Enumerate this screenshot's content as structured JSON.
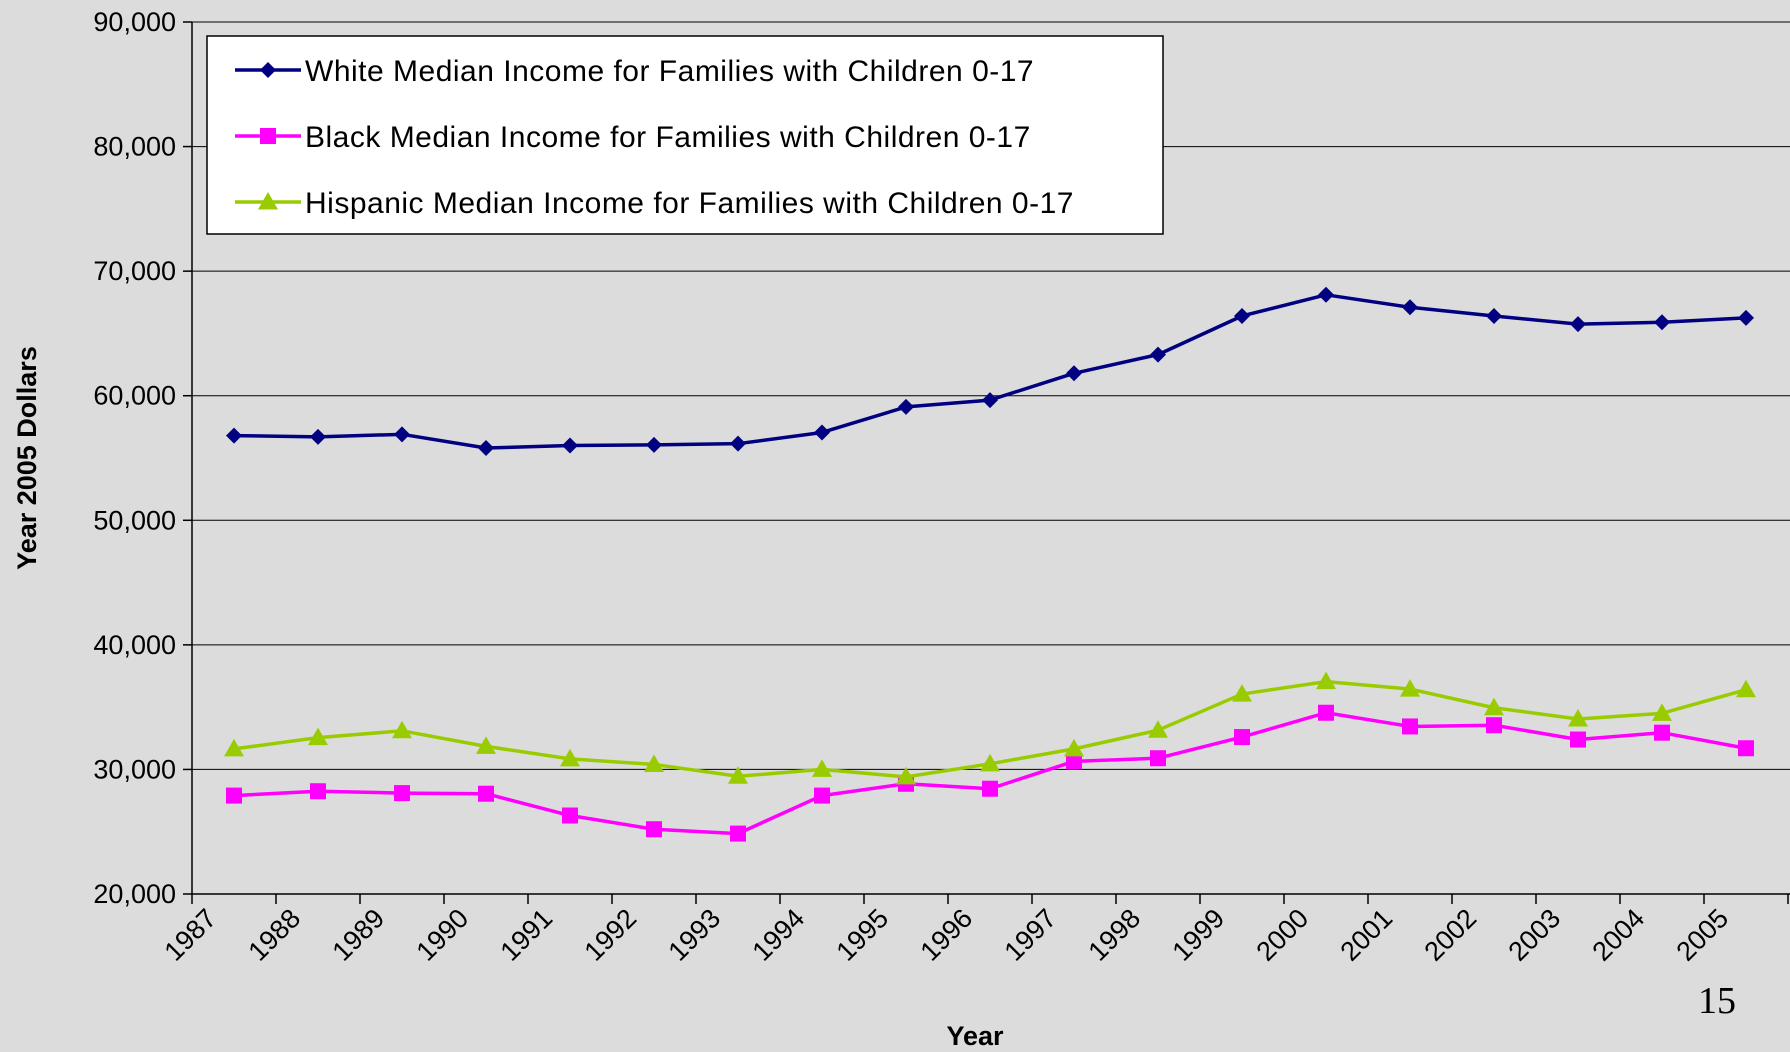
{
  "chart_data": {
    "type": "line",
    "categories": [
      "1987",
      "1988",
      "1989",
      "1990",
      "1991",
      "1992",
      "1993",
      "1994",
      "1995",
      "1996",
      "1997",
      "1998",
      "1999",
      "2000",
      "2001",
      "2002",
      "2003",
      "2004",
      "2005"
    ],
    "series": [
      {
        "name": "White Median Income for Families with Children 0-17",
        "color": "#000080",
        "marker": "diamond",
        "values": [
          56800,
          56700,
          56900,
          55800,
          56000,
          56050,
          56150,
          57050,
          59100,
          59650,
          61800,
          63300,
          66400,
          68100,
          67100,
          66400,
          65750,
          65900,
          66250
        ]
      },
      {
        "name": "Black Median Income for Families with Children 0-17",
        "color": "#ff00ff",
        "marker": "square",
        "values": [
          27900,
          28250,
          28100,
          28050,
          26300,
          25200,
          24850,
          27900,
          28850,
          28450,
          30650,
          30900,
          32600,
          34550,
          33450,
          33550,
          32400,
          32950,
          31700
        ]
      },
      {
        "name": "Hispanic Median Income for Families with Children 0-17",
        "color": "#99cc00",
        "marker": "triangle",
        "values": [
          31650,
          32550,
          33100,
          31850,
          30850,
          30400,
          29450,
          30000,
          29400,
          30450,
          31650,
          33150,
          36050,
          37050,
          36450,
          34950,
          34050,
          34500,
          36400
        ]
      }
    ],
    "xlabel": "Year",
    "ylabel": "Year 2005 Dollars",
    "ylim": [
      20000,
      90000
    ],
    "y_ticks": [
      "20,000",
      "30,000",
      "40,000",
      "50,000",
      "60,000",
      "70,000",
      "80,000",
      "90,000"
    ],
    "grid": true,
    "legend_position": "top-left"
  },
  "page_number": "15"
}
